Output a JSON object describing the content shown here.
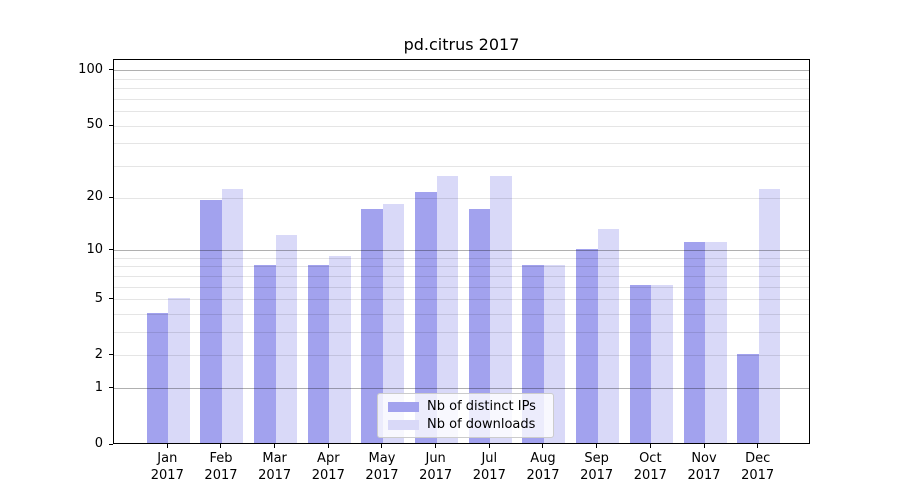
{
  "chart_data": {
    "type": "bar",
    "title": "pd.citrus 2017",
    "categories": [
      "Jan",
      "Feb",
      "Mar",
      "Apr",
      "May",
      "Jun",
      "Jul",
      "Aug",
      "Sep",
      "Oct",
      "Nov",
      "Dec"
    ],
    "category_year": "2017",
    "series": [
      {
        "name": "Nb of distinct IPs",
        "color": "#a2a2ee",
        "values": [
          4,
          19,
          8,
          8,
          17,
          21,
          17,
          8,
          10,
          6,
          11,
          2
        ]
      },
      {
        "name": "Nb of downloads",
        "color": "#d9d9f8",
        "values": [
          5,
          22,
          12,
          9,
          18,
          26,
          26,
          8,
          13,
          6,
          11,
          22
        ]
      }
    ],
    "y_axis": {
      "scale": "log1p",
      "labeled_ticks": [
        0,
        1,
        2,
        5,
        10,
        20,
        50,
        100
      ],
      "decade_gridlines": [
        1,
        10,
        100
      ],
      "minor_gridlines": [
        2,
        3,
        4,
        5,
        6,
        7,
        8,
        9,
        20,
        30,
        40,
        50,
        60,
        70,
        80,
        90
      ],
      "top_units": 2.062
    },
    "grid": "on",
    "legend_position": "lower center",
    "colors": {
      "major_grid": "#b0b0b0",
      "minor_grid": "#e6e6e6",
      "axis": "#000000",
      "background": "#ffffff"
    }
  }
}
